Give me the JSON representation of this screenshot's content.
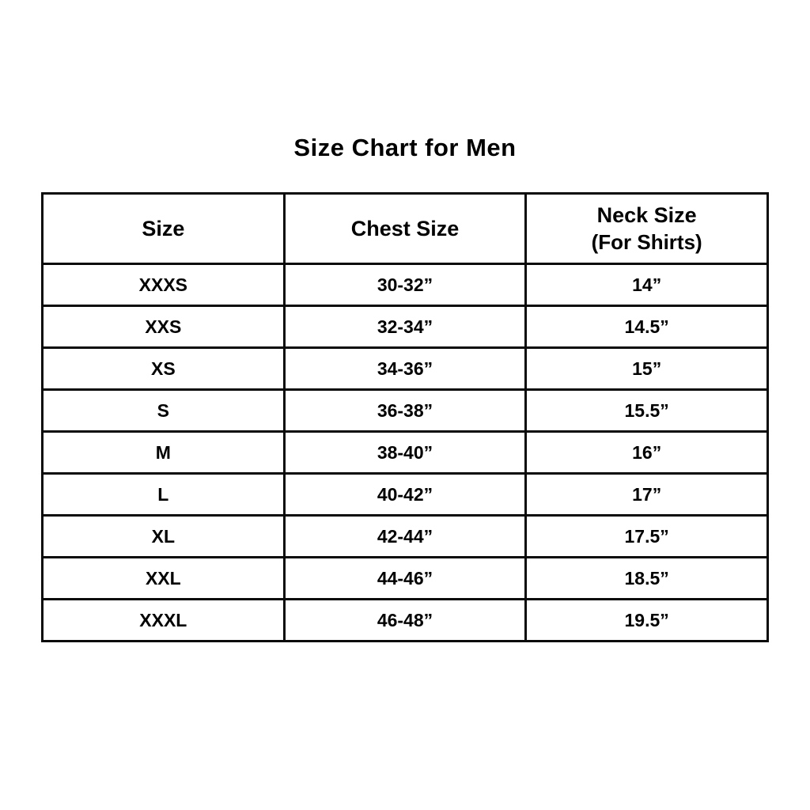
{
  "title": "Size Chart for Men",
  "chart_data": {
    "type": "table",
    "title": "Size Chart for Men",
    "columns": [
      "Size",
      "Chest Size",
      "Neck Size (For Shirts)"
    ],
    "header": {
      "col1": "Size",
      "col2": "Chest Size",
      "col3_line1": "Neck Size",
      "col3_line2": "(For Shirts)"
    },
    "rows": [
      {
        "size": "XXXS",
        "chest": "30-32”",
        "neck": "14”"
      },
      {
        "size": "XXS",
        "chest": "32-34”",
        "neck": "14.5”"
      },
      {
        "size": "XS",
        "chest": "34-36”",
        "neck": "15”"
      },
      {
        "size": "S",
        "chest": "36-38”",
        "neck": "15.5”"
      },
      {
        "size": "M",
        "chest": "38-40”",
        "neck": "16”"
      },
      {
        "size": "L",
        "chest": "40-42”",
        "neck": "17”"
      },
      {
        "size": "XL",
        "chest": "42-44”",
        "neck": "17.5”"
      },
      {
        "size": "XXL",
        "chest": "44-46”",
        "neck": "18.5”"
      },
      {
        "size": "XXXL",
        "chest": "46-48”",
        "neck": "19.5”"
      }
    ]
  }
}
